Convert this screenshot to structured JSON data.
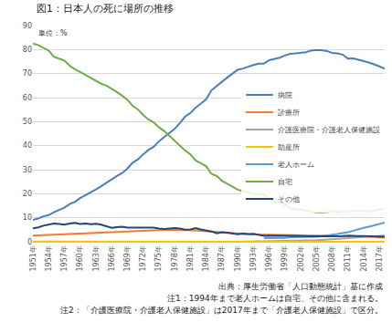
{
  "chart_data": {
    "type": "line",
    "title": "図1：日本人の死に場所の推移",
    "annotations": [
      "単位：%"
    ],
    "notes": [
      "出典：厚生労働省「人口動態統計」基に作成",
      "注1：1994年まで老人ホームは自宅、その他に含まれる。",
      "注2：「介護医療院・介護老人保健施設」は2017年まで「介護老人保健施設」で区分。"
    ],
    "x": [
      1951,
      1952,
      1953,
      1954,
      1955,
      1956,
      1957,
      1958,
      1959,
      1960,
      1961,
      1962,
      1963,
      1964,
      1965,
      1966,
      1967,
      1968,
      1969,
      1970,
      1971,
      1972,
      1973,
      1974,
      1975,
      1976,
      1977,
      1978,
      1979,
      1980,
      1981,
      1982,
      1983,
      1984,
      1985,
      1986,
      1987,
      1988,
      1989,
      1990,
      1991,
      1992,
      1993,
      1994,
      1995,
      1996,
      1997,
      1998,
      1999,
      2000,
      2001,
      2002,
      2003,
      2004,
      2005,
      2006,
      2007,
      2008,
      2009,
      2010,
      2011,
      2012,
      2013,
      2014,
      2015,
      2016,
      2017,
      2018
    ],
    "xlim": [
      1951,
      2018
    ],
    "xticks": [
      {
        "value": 1951,
        "label": "1951年"
      },
      {
        "value": 1954,
        "label": "1954年"
      },
      {
        "value": 1957,
        "label": "1957年"
      },
      {
        "value": 1960,
        "label": "1960年"
      },
      {
        "value": 1963,
        "label": "1963年"
      },
      {
        "value": 1966,
        "label": "1966年"
      },
      {
        "value": 1969,
        "label": "1969年"
      },
      {
        "value": 1972,
        "label": "1972年"
      },
      {
        "value": 1975,
        "label": "1975年"
      },
      {
        "value": 1978,
        "label": "1978年"
      },
      {
        "value": 1981,
        "label": "1981年"
      },
      {
        "value": 1984,
        "label": "1984年"
      },
      {
        "value": 1987,
        "label": "1987年"
      },
      {
        "value": 1990,
        "label": "1990年"
      },
      {
        "value": 1993,
        "label": "1993年"
      },
      {
        "value": 1996,
        "label": "1996年"
      },
      {
        "value": 1999,
        "label": "1999年"
      },
      {
        "value": 2002,
        "label": "2002年"
      },
      {
        "value": 2005,
        "label": "2005年"
      },
      {
        "value": 2008,
        "label": "2008年"
      },
      {
        "value": 2011,
        "label": "2011年"
      },
      {
        "value": 2014,
        "label": "2014年"
      },
      {
        "value": 2017,
        "label": "2017年"
      }
    ],
    "ylim": [
      0,
      90
    ],
    "yticks": [
      0,
      10,
      20,
      30,
      40,
      50,
      60,
      70,
      80,
      90
    ],
    "grid": true,
    "legend": "right",
    "series": [
      {
        "name": "病院",
        "color": "#4a7ebb",
        "values": [
          9.1,
          9.7,
          10.6,
          11.1,
          12.3,
          13.1,
          14.2,
          15.7,
          16.6,
          18.2,
          19.3,
          20.6,
          21.8,
          23.1,
          24.6,
          26.2,
          27.4,
          28.6,
          30.5,
          32.9,
          34.3,
          36.4,
          38.2,
          39.5,
          41.8,
          43.6,
          45.4,
          47.0,
          49.4,
          52.1,
          53.6,
          55.8,
          57.5,
          59.3,
          63.0,
          64.9,
          66.6,
          68.3,
          70.0,
          71.6,
          72.1,
          72.9,
          73.6,
          74.1,
          74.1,
          75.6,
          76.0,
          76.6,
          77.5,
          78.2,
          78.4,
          78.6,
          78.9,
          79.6,
          79.8,
          79.7,
          79.4,
          78.6,
          78.4,
          77.9,
          76.2,
          76.3,
          75.6,
          75.2,
          74.6,
          73.9,
          73.0,
          72.0
        ]
      },
      {
        "name": "診療所",
        "color": "#ed7d31",
        "values": [
          2.6,
          2.7,
          2.8,
          2.9,
          3.0,
          3.1,
          3.2,
          3.3,
          3.4,
          3.6,
          3.6,
          3.7,
          3.8,
          3.9,
          3.9,
          4.1,
          4.2,
          4.3,
          4.4,
          4.5,
          4.6,
          4.7,
          4.8,
          4.8,
          4.9,
          4.9,
          4.9,
          4.9,
          4.9,
          4.9,
          4.8,
          4.7,
          4.6,
          4.5,
          4.3,
          4.1,
          3.9,
          3.7,
          3.6,
          3.4,
          3.2,
          3.1,
          3.0,
          3.0,
          3.0,
          3.0,
          2.9,
          2.9,
          2.8,
          2.8,
          2.8,
          2.7,
          2.7,
          2.6,
          2.6,
          2.6,
          2.5,
          2.5,
          2.4,
          2.4,
          2.3,
          2.3,
          2.2,
          2.2,
          2.1,
          2.1,
          1.8,
          1.8
        ]
      },
      {
        "name": "介護医療院・介護老人保健施設",
        "color": "#a5a5a5",
        "values": [
          null,
          null,
          null,
          null,
          null,
          null,
          null,
          null,
          null,
          null,
          null,
          null,
          null,
          null,
          null,
          null,
          null,
          null,
          null,
          null,
          null,
          null,
          null,
          null,
          null,
          null,
          null,
          null,
          null,
          null,
          null,
          null,
          null,
          null,
          null,
          null,
          null,
          null,
          null,
          0.0,
          0.1,
          0.1,
          0.2,
          0.2,
          0.2,
          0.3,
          0.3,
          0.3,
          0.4,
          0.5,
          0.5,
          0.5,
          0.6,
          0.6,
          0.7,
          0.8,
          0.9,
          1.1,
          1.2,
          1.3,
          1.5,
          1.7,
          1.9,
          2.0,
          2.3,
          2.3,
          2.5,
          2.6
        ]
      },
      {
        "name": "助産所",
        "color": "#ffc000",
        "values": [
          0.1,
          0.1,
          0.1,
          0.1,
          0.1,
          0.1,
          0.1,
          0.1,
          0.1,
          0.1,
          0.1,
          0.1,
          0.1,
          0.1,
          0.1,
          0.1,
          0.1,
          0.1,
          0.1,
          0.1,
          0.1,
          0.1,
          0.1,
          0.1,
          0.1,
          0.0,
          0.0,
          0.0,
          0.0,
          0.0,
          0.0,
          0.0,
          0.0,
          0.0,
          0.0,
          0.0,
          0.0,
          0.0,
          0.0,
          0.0,
          0.0,
          0.0,
          0.0,
          0.0,
          0.0,
          0.0,
          0.0,
          0.0,
          0.0,
          0.0,
          0.0,
          0.0,
          0.0,
          0.0,
          0.0,
          0.0,
          0.0,
          0.0,
          0.0,
          0.0,
          0.0,
          0.0,
          0.0,
          0.0,
          0.0,
          0.0,
          0.0,
          0.0
        ]
      },
      {
        "name": "老人ホーム",
        "color": "#5b9bd5",
        "values": [
          null,
          null,
          null,
          null,
          null,
          null,
          null,
          null,
          null,
          null,
          null,
          null,
          null,
          null,
          null,
          null,
          null,
          null,
          null,
          null,
          null,
          null,
          null,
          null,
          null,
          null,
          null,
          null,
          null,
          null,
          null,
          null,
          null,
          null,
          null,
          null,
          null,
          null,
          null,
          null,
          null,
          null,
          null,
          null,
          1.5,
          1.5,
          1.5,
          1.5,
          1.6,
          1.9,
          1.9,
          1.9,
          2.0,
          2.1,
          2.1,
          2.3,
          2.5,
          2.9,
          3.2,
          3.5,
          4.0,
          4.6,
          5.3,
          5.8,
          6.3,
          6.9,
          7.5,
          8.0
        ]
      },
      {
        "name": "自宅",
        "color": "#70ad47",
        "values": [
          82.5,
          81.9,
          80.7,
          79.6,
          77.0,
          76.3,
          75.4,
          73.3,
          71.8,
          70.7,
          69.4,
          68.3,
          66.8,
          65.8,
          65.0,
          63.8,
          62.3,
          60.8,
          59.1,
          56.6,
          55.1,
          52.8,
          50.9,
          49.7,
          47.7,
          46.1,
          44.1,
          42.3,
          40.1,
          38.0,
          36.4,
          33.8,
          32.7,
          31.4,
          28.3,
          27.4,
          25.4,
          24.1,
          22.9,
          21.7,
          21.1,
          20.6,
          19.9,
          19.8,
          19.8,
          17.6,
          16.8,
          16.2,
          15.5,
          13.9,
          13.5,
          13.4,
          13.0,
          12.4,
          12.2,
          12.2,
          12.3,
          12.7,
          12.4,
          12.6,
          12.5,
          12.8,
          12.9,
          12.8,
          12.7,
          13.0,
          13.2,
          13.7
        ]
      },
      {
        "name": "その他",
        "color": "#264478",
        "values": [
          5.6,
          6.0,
          6.7,
          7.2,
          7.6,
          7.4,
          7.1,
          7.6,
          7.9,
          7.4,
          7.6,
          7.3,
          7.5,
          7.1,
          6.4,
          5.8,
          6.1,
          6.3,
          5.9,
          5.9,
          5.9,
          6.0,
          6.0,
          5.9,
          5.5,
          5.3,
          5.5,
          5.7,
          5.5,
          5.0,
          5.1,
          5.7,
          5.1,
          4.7,
          4.3,
          3.5,
          4.0,
          3.8,
          3.4,
          3.1,
          3.4,
          3.2,
          3.3,
          2.8,
          2.5,
          2.6,
          2.6,
          2.5,
          2.4,
          2.4,
          2.4,
          2.4,
          2.4,
          2.3,
          2.4,
          2.3,
          2.3,
          2.3,
          2.3,
          2.4,
          2.6,
          2.4,
          2.4,
          2.4,
          2.3,
          2.2,
          2.2,
          2.1
        ]
      }
    ]
  }
}
